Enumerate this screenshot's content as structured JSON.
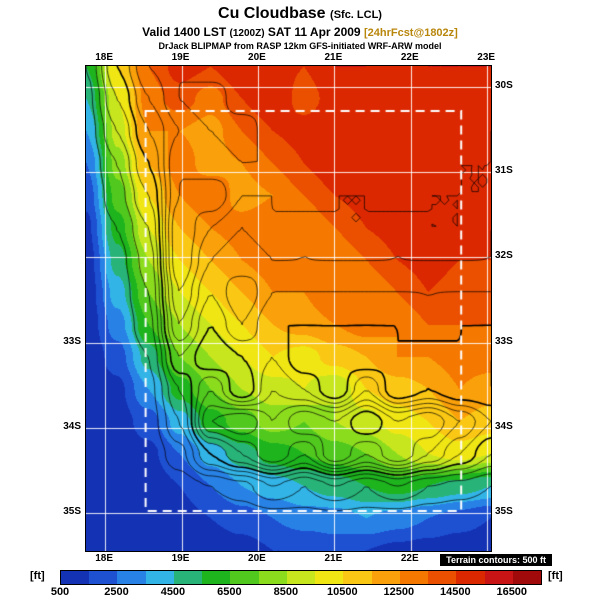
{
  "header": {
    "title": "Cu Cloudbase",
    "title_note": "(Sfc. LCL)",
    "valid_prefix": "Valid 1400 LST",
    "valid_zulu": "(1200Z)",
    "valid_date": "SAT 11 Apr 2009",
    "fcst_tag": "[24hrFcst@1802z]",
    "fcst_color": "#b8860b",
    "model_line": "DrJack BLIPMAP from RASP 12km GFS-initiated WRF-ARW model"
  },
  "map": {
    "top_labels": [
      {
        "text": "18E",
        "lon": 18
      },
      {
        "text": "19E",
        "lon": 19
      },
      {
        "text": "20E",
        "lon": 20
      },
      {
        "text": "21E",
        "lon": 21
      },
      {
        "text": "22E",
        "lon": 22
      },
      {
        "text": "23E",
        "lon": 23
      }
    ],
    "bottom_labels": [
      {
        "text": "18E",
        "lon": 18
      },
      {
        "text": "19E",
        "lon": 19
      },
      {
        "text": "20E",
        "lon": 20
      },
      {
        "text": "21E",
        "lon": 21
      },
      {
        "text": "22E",
        "lon": 22
      }
    ],
    "left_labels": [
      {
        "text": "33S",
        "lat": 33
      },
      {
        "text": "34S",
        "lat": 34
      },
      {
        "text": "35S",
        "lat": 35
      }
    ],
    "right_labels": [
      {
        "text": "30S",
        "lat": 30
      },
      {
        "text": "31S",
        "lat": 31
      },
      {
        "text": "32S",
        "lat": 32
      },
      {
        "text": "33S",
        "lat": 33
      },
      {
        "text": "34S",
        "lat": 34
      },
      {
        "text": "35S",
        "lat": 35
      }
    ]
  },
  "colorbar": {
    "unit_left": "[ft]",
    "unit_right": "[ft]",
    "tick_labels": [
      "500",
      "2500",
      "4500",
      "6500",
      "8500",
      "10500",
      "12500",
      "14500",
      "16500"
    ],
    "note": "Terrain contours: 500 ft"
  },
  "chart_data": {
    "type": "heatmap",
    "title": "Cu Cloudbase (Sfc. LCL)",
    "units": "ft",
    "lon_range": [
      17.75,
      23.05
    ],
    "lat_range": [
      29.75,
      35.45
    ],
    "grid_lons": [
      18,
      19,
      20,
      21,
      22,
      23
    ],
    "grid_lats": [
      30,
      31,
      32,
      33,
      34,
      35
    ],
    "level_min": 500,
    "level_step": 1000,
    "colorbar_ticks": [
      500,
      2500,
      4500,
      6500,
      8500,
      10500,
      12500,
      14500,
      16500
    ],
    "palette": [
      "#1432b4",
      "#1e50d2",
      "#2882e6",
      "#32b4e6",
      "#28b478",
      "#1eb41e",
      "#50c81e",
      "#8cdc1e",
      "#c8e61e",
      "#f0e614",
      "#fac814",
      "#faa00a",
      "#f57800",
      "#eb5000",
      "#dc2800",
      "#c81414",
      "#a00a0a"
    ],
    "cloudbase_grid": [
      [
        5500,
        10500,
        13500,
        15000,
        14500,
        15500,
        15000,
        14500,
        15500,
        15500,
        15000,
        15500,
        15500,
        15500
      ],
      [
        4500,
        9500,
        13000,
        14000,
        13000,
        14500,
        15500,
        14000,
        15000,
        15500,
        15500,
        15000,
        15500,
        15000
      ],
      [
        3500,
        9000,
        12500,
        12500,
        12000,
        13500,
        14500,
        15000,
        15500,
        15000,
        14500,
        15500,
        15000,
        15500
      ],
      [
        2500,
        8000,
        11500,
        13000,
        12000,
        12500,
        13500,
        14500,
        15500,
        15500,
        15000,
        14500,
        15500,
        15000
      ],
      [
        1800,
        7000,
        10500,
        12500,
        13500,
        12000,
        12500,
        13500,
        14500,
        15000,
        15500,
        15000,
        14500,
        15500
      ],
      [
        1200,
        6000,
        9500,
        11500,
        12500,
        13000,
        13500,
        12500,
        13500,
        14500,
        15000,
        15500,
        15000,
        15000
      ],
      [
        900,
        5000,
        8500,
        10500,
        11500,
        12500,
        13000,
        13500,
        12500,
        13500,
        14500,
        15000,
        14500,
        14500
      ],
      [
        800,
        4000,
        7500,
        9500,
        10500,
        11500,
        12500,
        12500,
        13500,
        12500,
        13500,
        14500,
        14000,
        14000
      ],
      [
        800,
        3000,
        6500,
        8500,
        9500,
        10500,
        11500,
        12000,
        12500,
        13000,
        12500,
        13500,
        13500,
        13500
      ],
      [
        700,
        2000,
        5000,
        7500,
        8500,
        9500,
        10500,
        10000,
        11000,
        11500,
        12500,
        12500,
        13000,
        13000
      ],
      [
        700,
        1200,
        3500,
        6000,
        7500,
        8500,
        9000,
        9500,
        8500,
        10500,
        11000,
        11500,
        12500,
        12000
      ],
      [
        600,
        1000,
        2000,
        4000,
        6000,
        7000,
        8000,
        7500,
        8500,
        9000,
        10000,
        10500,
        11500,
        11000
      ],
      [
        500,
        800,
        1200,
        2500,
        4000,
        5000,
        6000,
        6500,
        7000,
        7500,
        8500,
        9500,
        10000,
        9500
      ],
      [
        500,
        600,
        800,
        1500,
        2500,
        3500,
        4000,
        4500,
        5000,
        5500,
        6000,
        5500,
        5000,
        4500
      ],
      [
        500,
        500,
        600,
        1000,
        1500,
        2000,
        2500,
        3000,
        3000,
        3500,
        3000,
        2500,
        2000,
        1500
      ],
      [
        500,
        500,
        500,
        600,
        800,
        1000,
        1500,
        1500,
        2000,
        1500,
        1200,
        1000,
        800,
        700
      ]
    ],
    "terrain_grid": [
      [
        500,
        2500,
        4000,
        4500,
        4000,
        4500,
        4000,
        4500,
        4000,
        4500,
        4500,
        4000,
        4500,
        4000
      ],
      [
        300,
        2000,
        3500,
        4500,
        5000,
        4000,
        4500,
        4000,
        4500,
        4000,
        4500,
        4500,
        4000,
        4500
      ],
      [
        200,
        1500,
        3000,
        4000,
        4500,
        5000,
        4000,
        4500,
        4000,
        4500,
        4000,
        4000,
        4500,
        4000
      ],
      [
        100,
        1000,
        2500,
        4500,
        4000,
        4500,
        4500,
        4000,
        4500,
        4000,
        4000,
        4500,
        4000,
        4000
      ],
      [
        0,
        800,
        2000,
        4500,
        5000,
        4000,
        4000,
        4500,
        4000,
        4000,
        4500,
        4000,
        4000,
        4000
      ],
      [
        0,
        500,
        1500,
        5000,
        4000,
        3500,
        4000,
        3500,
        4000,
        4000,
        3500,
        4000,
        4000,
        3500
      ],
      [
        0,
        300,
        1200,
        5000,
        3500,
        3000,
        3500,
        3500,
        3500,
        3500,
        3500,
        3500,
        3500,
        3500
      ],
      [
        0,
        200,
        1000,
        4500,
        3000,
        4000,
        3000,
        3000,
        3000,
        3000,
        3000,
        3000,
        3000,
        3000
      ],
      [
        0,
        100,
        800,
        4000,
        2500,
        3500,
        2500,
        2500,
        2500,
        2500,
        2500,
        3000,
        2500,
        2500
      ],
      [
        0,
        0,
        500,
        3000,
        2000,
        2500,
        3000,
        2000,
        2500,
        2000,
        2500,
        2000,
        2500,
        2000
      ],
      [
        0,
        0,
        300,
        2000,
        3500,
        2000,
        3500,
        3000,
        2000,
        3500,
        2000,
        2500,
        2000,
        2000
      ],
      [
        0,
        0,
        200,
        1500,
        4500,
        5000,
        4000,
        5000,
        4500,
        5500,
        4500,
        5000,
        4000,
        3000
      ],
      [
        0,
        0,
        100,
        800,
        2500,
        3500,
        4500,
        3500,
        5000,
        4000,
        5000,
        4000,
        3000,
        2000
      ],
      [
        0,
        0,
        0,
        200,
        500,
        800,
        1500,
        1000,
        1500,
        1000,
        1500,
        1000,
        800,
        500
      ],
      [
        0,
        0,
        0,
        0,
        0,
        100,
        200,
        300,
        300,
        300,
        200,
        100,
        0,
        0
      ],
      [
        0,
        0,
        0,
        0,
        0,
        0,
        0,
        0,
        0,
        0,
        0,
        0,
        0,
        0
      ]
    ],
    "terrain_contour_levels": [
      500,
      1000,
      1500,
      2000,
      2500,
      3000,
      3500,
      4000,
      4500,
      5000,
      5500
    ],
    "terrain_thick_levels": [
      2500,
      5000
    ],
    "domain_box": {
      "lon": [
        18.53,
        22.66
      ],
      "lat": [
        30.28,
        34.98
      ]
    }
  }
}
